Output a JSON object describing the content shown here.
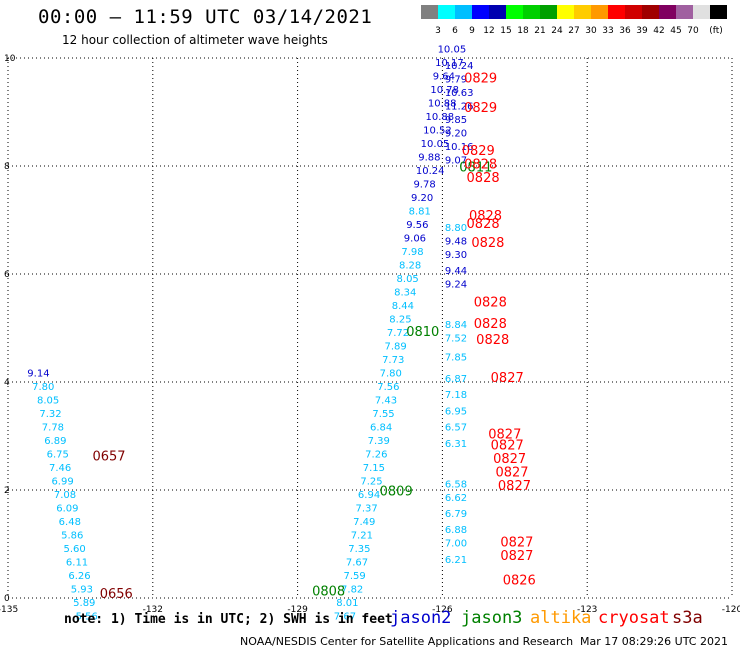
{
  "header": {
    "title": "00:00 – 11:59 UTC 03/14/2021",
    "subtitle": "12 hour collection of altimeter wave heights"
  },
  "color_scale": {
    "colors": [
      "#808080",
      "#00ffff",
      "#00bfff",
      "#0000ff",
      "#0000b0",
      "#00ff00",
      "#00d000",
      "#00a000",
      "#ffff00",
      "#ffcc00",
      "#ff9900",
      "#ff0000",
      "#d00000",
      "#a00000",
      "#800060",
      "#a060a0",
      "#e0e0e0",
      "#000000"
    ],
    "labels": [
      "3",
      "6",
      "9",
      "12",
      "15",
      "18",
      "21",
      "24",
      "27",
      "30",
      "33",
      "36",
      "39",
      "42",
      "45",
      "70",
      "(ft)"
    ]
  },
  "notes": {
    "text": "note:  1) Time is in UTC; 2) SWH is in feet",
    "credit": "NOAA/NESDIS Center for Satellite Applications and Research",
    "timestamp": "Mar 17 08:29:26 UTC 2021"
  },
  "satellites": [
    {
      "name": "jason2",
      "color": "#0000cc"
    },
    {
      "name": "jason3",
      "color": "#008000"
    },
    {
      "name": "altika",
      "color": "#ff9900"
    },
    {
      "name": "cryosat",
      "color": "#ff0000"
    },
    {
      "name": "s3a",
      "color": "#800000"
    }
  ],
  "chart_data": {
    "type": "scatter",
    "xlim": [
      -135,
      -120
    ],
    "ylim": [
      0,
      10
    ],
    "grid": true,
    "x_ticks": [
      "-135",
      "-132",
      "-129",
      "-126",
      "-123",
      "-120"
    ],
    "y_ticks": [
      "0",
      "2",
      "4",
      "6",
      "8",
      "10"
    ],
    "wave_heights": [
      {
        "x": -134.6,
        "y": 4.1,
        "label": "9.14",
        "color": "#0000cc"
      },
      {
        "x": -134.5,
        "y": 3.85,
        "label": "7.80",
        "color": "#00bfff"
      },
      {
        "x": -134.4,
        "y": 3.6,
        "label": "8.05",
        "color": "#00bfff"
      },
      {
        "x": -134.35,
        "y": 3.35,
        "label": "7.32",
        "color": "#00bfff"
      },
      {
        "x": -134.3,
        "y": 3.1,
        "label": "7.78",
        "color": "#00bfff"
      },
      {
        "x": -134.25,
        "y": 2.85,
        "label": "6.89",
        "color": "#00bfff"
      },
      {
        "x": -134.2,
        "y": 2.6,
        "label": "6.75",
        "color": "#00bfff"
      },
      {
        "x": -134.15,
        "y": 2.35,
        "label": "7.46",
        "color": "#00bfff"
      },
      {
        "x": -134.1,
        "y": 2.1,
        "label": "6.99",
        "color": "#00bfff"
      },
      {
        "x": -134.05,
        "y": 1.85,
        "label": "7.08",
        "color": "#00bfff"
      },
      {
        "x": -134.0,
        "y": 1.6,
        "label": "6.09",
        "color": "#00bfff"
      },
      {
        "x": -133.95,
        "y": 1.35,
        "label": "6.48",
        "color": "#00bfff"
      },
      {
        "x": -133.9,
        "y": 1.1,
        "label": "5.86",
        "color": "#00bfff"
      },
      {
        "x": -133.85,
        "y": 0.85,
        "label": "5.60",
        "color": "#00bfff"
      },
      {
        "x": -133.8,
        "y": 0.6,
        "label": "6.11",
        "color": "#00bfff"
      },
      {
        "x": -133.75,
        "y": 0.35,
        "label": "6.26",
        "color": "#00bfff"
      },
      {
        "x": -133.7,
        "y": 0.1,
        "label": "5.93",
        "color": "#00bfff"
      },
      {
        "x": -133.65,
        "y": -0.15,
        "label": "5.89",
        "color": "#00bfff"
      },
      {
        "x": -133.6,
        "y": -0.4,
        "label": "5.56",
        "color": "#00bfff"
      },
      {
        "x": -128.25,
        "y": -0.4,
        "label": "7.67",
        "color": "#00bfff"
      },
      {
        "x": -128.2,
        "y": -0.15,
        "label": "8.01",
        "color": "#00bfff"
      },
      {
        "x": -128.1,
        "y": 0.1,
        "label": "7.82",
        "color": "#00bfff"
      },
      {
        "x": -128.05,
        "y": 0.35,
        "label": "7.59",
        "color": "#00bfff"
      },
      {
        "x": -128.0,
        "y": 0.6,
        "label": "7.67",
        "color": "#00bfff"
      },
      {
        "x": -127.95,
        "y": 0.85,
        "label": "7.35",
        "color": "#00bfff"
      },
      {
        "x": -127.9,
        "y": 1.1,
        "label": "7.21",
        "color": "#00bfff"
      },
      {
        "x": -127.85,
        "y": 1.35,
        "label": "7.49",
        "color": "#00bfff"
      },
      {
        "x": -127.8,
        "y": 1.6,
        "label": "7.37",
        "color": "#00bfff"
      },
      {
        "x": -127.75,
        "y": 1.85,
        "label": "6.94",
        "color": "#00bfff"
      },
      {
        "x": -127.7,
        "y": 2.1,
        "label": "7.25",
        "color": "#00bfff"
      },
      {
        "x": -127.65,
        "y": 2.35,
        "label": "7.15",
        "color": "#00bfff"
      },
      {
        "x": -127.6,
        "y": 2.6,
        "label": "7.26",
        "color": "#00bfff"
      },
      {
        "x": -127.55,
        "y": 2.85,
        "label": "7.39",
        "color": "#00bfff"
      },
      {
        "x": -127.5,
        "y": 3.1,
        "label": "6.84",
        "color": "#00bfff"
      },
      {
        "x": -127.45,
        "y": 3.35,
        "label": "7.55",
        "color": "#00bfff"
      },
      {
        "x": -127.4,
        "y": 3.6,
        "label": "7.43",
        "color": "#00bfff"
      },
      {
        "x": -127.35,
        "y": 3.85,
        "label": "7.56",
        "color": "#00bfff"
      },
      {
        "x": -127.3,
        "y": 4.1,
        "label": "7.80",
        "color": "#00bfff"
      },
      {
        "x": -127.25,
        "y": 4.35,
        "label": "7.73",
        "color": "#00bfff"
      },
      {
        "x": -127.2,
        "y": 4.6,
        "label": "7.89",
        "color": "#00bfff"
      },
      {
        "x": -127.15,
        "y": 4.85,
        "label": "7.72",
        "color": "#00bfff"
      },
      {
        "x": -127.1,
        "y": 5.1,
        "label": "8.25",
        "color": "#00bfff"
      },
      {
        "x": -127.05,
        "y": 5.35,
        "label": "8.44",
        "color": "#00bfff"
      },
      {
        "x": -127.0,
        "y": 5.6,
        "label": "8.34",
        "color": "#00bfff"
      },
      {
        "x": -126.95,
        "y": 5.85,
        "label": "8.05",
        "color": "#00bfff"
      },
      {
        "x": -126.9,
        "y": 6.1,
        "label": "8.28",
        "color": "#00bfff"
      },
      {
        "x": -126.85,
        "y": 6.35,
        "label": "7.98",
        "color": "#00bfff"
      },
      {
        "x": -126.8,
        "y": 6.6,
        "label": "9.06",
        "color": "#0000cc"
      },
      {
        "x": -126.75,
        "y": 6.85,
        "label": "9.56",
        "color": "#0000cc"
      },
      {
        "x": -126.7,
        "y": 7.1,
        "label": "8.81",
        "color": "#00bfff"
      },
      {
        "x": -126.65,
        "y": 7.35,
        "label": "9.20",
        "color": "#0000cc"
      },
      {
        "x": -126.6,
        "y": 7.6,
        "label": "9.78",
        "color": "#0000cc"
      },
      {
        "x": -126.55,
        "y": 7.85,
        "label": "10.24",
        "color": "#0000cc"
      },
      {
        "x": -126.5,
        "y": 8.1,
        "label": "9.88",
        "color": "#0000cc"
      },
      {
        "x": -126.45,
        "y": 8.35,
        "label": "10.05",
        "color": "#0000cc"
      },
      {
        "x": -126.4,
        "y": 8.6,
        "label": "10.52",
        "color": "#0000cc"
      },
      {
        "x": -126.35,
        "y": 8.85,
        "label": "10.88",
        "color": "#0000cc"
      },
      {
        "x": -126.3,
        "y": 9.1,
        "label": "10.88",
        "color": "#0000cc"
      },
      {
        "x": -126.25,
        "y": 9.35,
        "label": "10.78",
        "color": "#0000cc"
      },
      {
        "x": -126.2,
        "y": 9.6,
        "label": "9.64",
        "color": "#0000cc"
      },
      {
        "x": -126.15,
        "y": 9.85,
        "label": "10.17",
        "color": "#0000cc"
      },
      {
        "x": -126.1,
        "y": 10.1,
        "label": "10.05",
        "color": "#0000cc"
      },
      {
        "x": -125.95,
        "y": 9.8,
        "label": "10.24",
        "color": "#0000cc"
      },
      {
        "x": -125.95,
        "y": 9.55,
        "label": "9.79",
        "color": "#0000cc"
      },
      {
        "x": -125.95,
        "y": 9.3,
        "label": "10.63",
        "color": "#0000cc"
      },
      {
        "x": -125.95,
        "y": 9.05,
        "label": "11.26",
        "color": "#0000cc"
      },
      {
        "x": -125.95,
        "y": 8.8,
        "label": "9.85",
        "color": "#0000cc"
      },
      {
        "x": -125.95,
        "y": 8.55,
        "label": "9.20",
        "color": "#0000cc"
      },
      {
        "x": -125.95,
        "y": 8.3,
        "label": "10.16",
        "color": "#0000cc"
      },
      {
        "x": -125.95,
        "y": 8.05,
        "label": "9.07",
        "color": "#0000cc"
      },
      {
        "x": -125.95,
        "y": 6.8,
        "label": "8.80",
        "color": "#00bfff"
      },
      {
        "x": -125.95,
        "y": 6.55,
        "label": "9.48",
        "color": "#0000cc"
      },
      {
        "x": -125.95,
        "y": 6.3,
        "label": "9.30",
        "color": "#0000cc"
      },
      {
        "x": -125.95,
        "y": 6.0,
        "label": "9.44",
        "color": "#0000cc"
      },
      {
        "x": -125.95,
        "y": 5.75,
        "label": "9.24",
        "color": "#0000cc"
      },
      {
        "x": -125.95,
        "y": 5.0,
        "label": "8.84",
        "color": "#00bfff"
      },
      {
        "x": -125.95,
        "y": 4.75,
        "label": "7.52",
        "color": "#00bfff"
      },
      {
        "x": -125.95,
        "y": 4.4,
        "label": "7.85",
        "color": "#00bfff"
      },
      {
        "x": -125.95,
        "y": 4.0,
        "label": "6.87",
        "color": "#00bfff"
      },
      {
        "x": -125.95,
        "y": 3.7,
        "label": "7.18",
        "color": "#00bfff"
      },
      {
        "x": -125.95,
        "y": 3.4,
        "label": "6.95",
        "color": "#00bfff"
      },
      {
        "x": -125.95,
        "y": 3.1,
        "label": "6.57",
        "color": "#00bfff"
      },
      {
        "x": -125.95,
        "y": 2.8,
        "label": "6.31",
        "color": "#00bfff"
      },
      {
        "x": -125.95,
        "y": 2.05,
        "label": "6.58",
        "color": "#00bfff"
      },
      {
        "x": -125.95,
        "y": 1.8,
        "label": "6.62",
        "color": "#00bfff"
      },
      {
        "x": -125.95,
        "y": 1.5,
        "label": "6.79",
        "color": "#00bfff"
      },
      {
        "x": -125.95,
        "y": 1.2,
        "label": "6.88",
        "color": "#00bfff"
      },
      {
        "x": -125.95,
        "y": 0.95,
        "label": "7.00",
        "color": "#00bfff"
      },
      {
        "x": -125.95,
        "y": 0.65,
        "label": "6.21",
        "color": "#00bfff"
      }
    ],
    "track_labels": [
      {
        "x": -125.55,
        "y": 9.55,
        "label": "0829",
        "color": "#ff0000"
      },
      {
        "x": -125.55,
        "y": 9.0,
        "label": "0829",
        "color": "#ff0000"
      },
      {
        "x": -125.6,
        "y": 8.2,
        "label": "0829",
        "color": "#ff0000"
      },
      {
        "x": -125.65,
        "y": 7.9,
        "label": "0811",
        "color": "#008000"
      },
      {
        "x": -125.55,
        "y": 7.95,
        "label": "0828",
        "color": "#ff0000"
      },
      {
        "x": -125.5,
        "y": 7.7,
        "label": "0828",
        "color": "#ff0000"
      },
      {
        "x": -125.45,
        "y": 7.0,
        "label": "0828",
        "color": "#ff0000"
      },
      {
        "x": -125.5,
        "y": 6.85,
        "label": "0828",
        "color": "#ff0000"
      },
      {
        "x": -125.4,
        "y": 6.5,
        "label": "0828",
        "color": "#ff0000"
      },
      {
        "x": -125.35,
        "y": 5.4,
        "label": "0828",
        "color": "#ff0000"
      },
      {
        "x": -125.35,
        "y": 5.0,
        "label": "0828",
        "color": "#ff0000"
      },
      {
        "x": -125.3,
        "y": 4.7,
        "label": "0828",
        "color": "#ff0000"
      },
      {
        "x": -126.75,
        "y": 4.85,
        "label": "0810",
        "color": "#008000"
      },
      {
        "x": -125.0,
        "y": 4.0,
        "label": "0827",
        "color": "#ff0000"
      },
      {
        "x": -125.05,
        "y": 2.95,
        "label": "0827",
        "color": "#ff0000"
      },
      {
        "x": -125.0,
        "y": 2.75,
        "label": "0827",
        "color": "#ff0000"
      },
      {
        "x": -124.95,
        "y": 2.5,
        "label": "0827",
        "color": "#ff0000"
      },
      {
        "x": -124.9,
        "y": 2.25,
        "label": "0827",
        "color": "#ff0000"
      },
      {
        "x": -124.85,
        "y": 2.0,
        "label": "0827",
        "color": "#ff0000"
      },
      {
        "x": -127.3,
        "y": 1.9,
        "label": "0809",
        "color": "#008000"
      },
      {
        "x": -124.8,
        "y": 0.95,
        "label": "0827",
        "color": "#ff0000"
      },
      {
        "x": -124.8,
        "y": 0.7,
        "label": "0827",
        "color": "#ff0000"
      },
      {
        "x": -124.75,
        "y": 0.25,
        "label": "0826",
        "color": "#ff0000"
      },
      {
        "x": -133.25,
        "y": 2.55,
        "label": "0657",
        "color": "#800000"
      },
      {
        "x": -133.1,
        "y": 0.0,
        "label": "0656",
        "color": "#800000"
      },
      {
        "x": -128.7,
        "y": 0.05,
        "label": "0808",
        "color": "#008000"
      }
    ]
  }
}
